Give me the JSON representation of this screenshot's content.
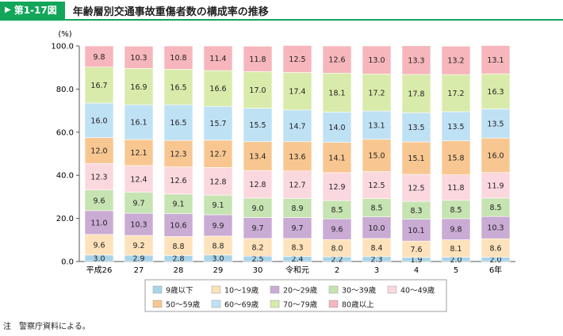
{
  "header": {
    "figure_number": "第1-17図",
    "title": "年齢層別交通事故重傷者数の構成率の推移"
  },
  "note": "注　警察庁資料による。",
  "chart_data": {
    "type": "bar",
    "stacked": true,
    "title": "年齢層別交通事故重傷者数の構成率の推移",
    "ylabel": "(%)",
    "ylim": [
      0,
      100
    ],
    "yticks": [
      "0.0",
      "20.0",
      "40.0",
      "60.0",
      "80.0",
      "100.0"
    ],
    "grid": false,
    "legend_position": "bottom",
    "categories": [
      "平成26",
      "27",
      "28",
      "29",
      "30",
      "令和元",
      "2",
      "3",
      "4",
      "5",
      "6年"
    ],
    "series": [
      {
        "name": "9歳以下",
        "color": "#a9d4ea",
        "values": [
          3.0,
          2.9,
          2.8,
          3.0,
          2.5,
          2.4,
          2.2,
          2.3,
          1.9,
          2.0,
          2.0
        ],
        "labels": [
          "3.0",
          "2.9",
          "2.8",
          "3.0",
          "2.5",
          "2.4",
          "2.2",
          "2.3",
          "1.9",
          "2.0",
          "2.0"
        ]
      },
      {
        "name": "10～19歳",
        "color": "#fde2bb",
        "values": [
          9.6,
          9.2,
          8.8,
          8.8,
          8.2,
          8.3,
          8.0,
          8.4,
          7.6,
          8.1,
          8.6
        ],
        "labels": [
          "9.6",
          "9.2",
          "8.8",
          "8.8",
          "8.2",
          "8.3",
          "8.0",
          "8.4",
          "7.6",
          "8.1",
          "8.6"
        ]
      },
      {
        "name": "20～29歳",
        "color": "#c9abd4",
        "values": [
          11.0,
          10.3,
          10.6,
          9.9,
          9.7,
          9.7,
          9.6,
          10.0,
          10.1,
          9.8,
          10.3
        ],
        "labels": [
          "11.0",
          "10.3",
          "10.6",
          "9.9",
          "9.7",
          "9.7",
          "9.6",
          "10.0",
          "10.1",
          "9.8",
          "10.3"
        ]
      },
      {
        "name": "30～39歳",
        "color": "#c6e3b2",
        "values": [
          9.6,
          9.7,
          9.1,
          9.1,
          9.0,
          8.9,
          8.5,
          8.5,
          8.3,
          8.5,
          8.5
        ],
        "labels": [
          "9.6",
          "9.7",
          "9.1",
          "9.1",
          "9.0",
          "8.9",
          "8.5",
          "8.5",
          "8.3",
          "8.5",
          "8.5"
        ]
      },
      {
        "name": "40～49歳",
        "color": "#fbd8de",
        "values": [
          12.3,
          12.4,
          12.6,
          12.8,
          12.8,
          12.7,
          12.9,
          12.5,
          12.5,
          11.8,
          11.9
        ],
        "labels": [
          "12.3",
          "12.4",
          "12.6",
          "12.8",
          "12.8",
          "12.7",
          "12.9",
          "12.5",
          "12.5",
          "11.8",
          "11.9"
        ]
      },
      {
        "name": "50～59歳",
        "color": "#f8c791",
        "values": [
          12.0,
          12.1,
          12.3,
          12.7,
          13.4,
          13.6,
          14.1,
          15.0,
          15.1,
          15.8,
          16.0
        ],
        "labels": [
          "12.0",
          "12.1",
          "12.3",
          "12.7",
          "13.4",
          "13.6",
          "14.1",
          "15.0",
          "15.1",
          "15.8",
          "16.0"
        ]
      },
      {
        "name": "60～69歳",
        "color": "#bfe1f4",
        "values": [
          16.0,
          16.1,
          16.5,
          15.7,
          15.5,
          14.7,
          14.0,
          13.1,
          13.5,
          13.5,
          13.5
        ],
        "labels": [
          "16.0",
          "16.1",
          "16.5",
          "15.7",
          "15.5",
          "14.7",
          "14.0",
          "13.1",
          "13.5",
          "13.5",
          "13.5"
        ]
      },
      {
        "name": "70～79歳",
        "color": "#d9ebaa",
        "values": [
          16.7,
          16.9,
          16.5,
          16.6,
          17.0,
          17.4,
          18.1,
          17.2,
          17.8,
          17.2,
          16.3
        ],
        "labels": [
          "16.7",
          "16.9",
          "16.5",
          "16.6",
          "17.0",
          "17.4",
          "18.1",
          "17.2",
          "17.8",
          "17.2",
          "16.3"
        ]
      },
      {
        "name": "80歳以上",
        "color": "#f6b6bb",
        "values": [
          9.8,
          10.3,
          10.8,
          11.4,
          11.8,
          12.5,
          12.6,
          13.0,
          13.3,
          13.2,
          13.1
        ],
        "labels": [
          "9.8",
          "10.3",
          "10.8",
          "11.4",
          "11.8",
          "12.5",
          "12.6",
          "13.0",
          "13.3",
          "13.2",
          "13.1"
        ]
      }
    ]
  }
}
